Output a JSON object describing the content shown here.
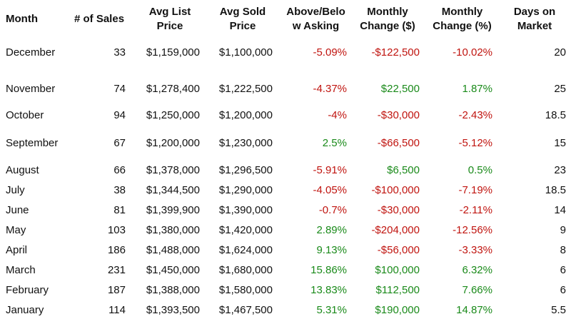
{
  "headers": {
    "month": "Month",
    "sales": "# of Sales",
    "avg_list": "Avg List\nPrice",
    "avg_sold": "Avg Sold\nPrice",
    "above_below": "Above/Belo\nw Asking",
    "monthly_change_usd": "Monthly\nChange ($)",
    "monthly_change_pct": "Monthly\nChange (%)",
    "days_on_market": "Days on\nMarket"
  },
  "colors": {
    "negative": "#c0140f",
    "positive": "#1a8a1a",
    "text": "#111111"
  },
  "rows": [
    {
      "month": "December",
      "sales": "33",
      "avg_list": "$1,159,000",
      "avg_sold": "$1,100,000",
      "above_below": "-5.09%",
      "above_below_sign": "neg",
      "change_usd": "-$122,500",
      "change_usd_sign": "neg",
      "change_pct": "-10.02%",
      "change_pct_sign": "neg",
      "days": "20"
    },
    {
      "month": "November",
      "sales": "74",
      "avg_list": "$1,278,400",
      "avg_sold": "$1,222,500",
      "above_below": "-4.37%",
      "above_below_sign": "neg",
      "change_usd": "$22,500",
      "change_usd_sign": "pos",
      "change_pct": "1.87%",
      "change_pct_sign": "pos",
      "days": "25"
    },
    {
      "month": "October",
      "sales": "94",
      "avg_list": "$1,250,000",
      "avg_sold": "$1,200,000",
      "above_below": "-4%",
      "above_below_sign": "neg",
      "change_usd": "-$30,000",
      "change_usd_sign": "neg",
      "change_pct": "-2.43%",
      "change_pct_sign": "neg",
      "days": "18.5"
    },
    {
      "month": "September",
      "sales": "67",
      "avg_list": "$1,200,000",
      "avg_sold": "$1,230,000",
      "above_below": "2.5%",
      "above_below_sign": "pos",
      "change_usd": "-$66,500",
      "change_usd_sign": "neg",
      "change_pct": "-5.12%",
      "change_pct_sign": "neg",
      "days": "15"
    },
    {
      "month": "August",
      "sales": "66",
      "avg_list": "$1,378,000",
      "avg_sold": "$1,296,500",
      "above_below": "-5.91%",
      "above_below_sign": "neg",
      "change_usd": "$6,500",
      "change_usd_sign": "pos",
      "change_pct": "0.5%",
      "change_pct_sign": "pos",
      "days": "23"
    },
    {
      "month": "July",
      "sales": "38",
      "avg_list": "$1,344,500",
      "avg_sold": "$1,290,000",
      "above_below": "-4.05%",
      "above_below_sign": "neg",
      "change_usd": "-$100,000",
      "change_usd_sign": "neg",
      "change_pct": "-7.19%",
      "change_pct_sign": "neg",
      "days": "18.5"
    },
    {
      "month": "June",
      "sales": "81",
      "avg_list": "$1,399,900",
      "avg_sold": "$1,390,000",
      "above_below": "-0.7%",
      "above_below_sign": "neg",
      "change_usd": "-$30,000",
      "change_usd_sign": "neg",
      "change_pct": "-2.11%",
      "change_pct_sign": "neg",
      "days": "14"
    },
    {
      "month": "May",
      "sales": "103",
      "avg_list": "$1,380,000",
      "avg_sold": "$1,420,000",
      "above_below": "2.89%",
      "above_below_sign": "pos",
      "change_usd": "-$204,000",
      "change_usd_sign": "neg",
      "change_pct": "-12.56%",
      "change_pct_sign": "neg",
      "days": "9"
    },
    {
      "month": "April",
      "sales": "186",
      "avg_list": "$1,488,000",
      "avg_sold": "$1,624,000",
      "above_below": "9.13%",
      "above_below_sign": "pos",
      "change_usd": "-$56,000",
      "change_usd_sign": "neg",
      "change_pct": "-3.33%",
      "change_pct_sign": "neg",
      "days": "8"
    },
    {
      "month": "March",
      "sales": "231",
      "avg_list": "$1,450,000",
      "avg_sold": "$1,680,000",
      "above_below": "15.86%",
      "above_below_sign": "pos",
      "change_usd": "$100,000",
      "change_usd_sign": "pos",
      "change_pct": "6.32%",
      "change_pct_sign": "pos",
      "days": "6"
    },
    {
      "month": "February",
      "sales": "187",
      "avg_list": "$1,388,000",
      "avg_sold": "$1,580,000",
      "above_below": "13.83%",
      "above_below_sign": "pos",
      "change_usd": "$112,500",
      "change_usd_sign": "pos",
      "change_pct": "7.66%",
      "change_pct_sign": "pos",
      "days": "6"
    },
    {
      "month": "January",
      "sales": "114",
      "avg_list": "$1,393,500",
      "avg_sold": "$1,467,500",
      "above_below": "5.31%",
      "above_below_sign": "pos",
      "change_usd": "$190,000",
      "change_usd_sign": "pos",
      "change_pct": "14.87%",
      "change_pct_sign": "pos",
      "days": "5.5"
    }
  ]
}
